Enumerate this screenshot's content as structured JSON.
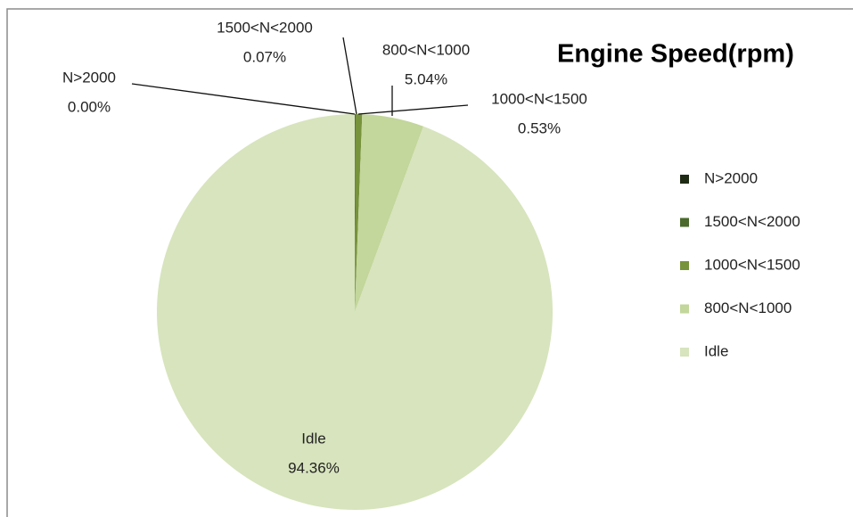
{
  "chart_data": {
    "type": "pie",
    "title": "Engine Speed(rpm)",
    "categories": [
      "N>2000",
      "1500<N<2000",
      "1000<N<1500",
      "800<N<1000",
      "Idle"
    ],
    "values": [
      0,
      0.07,
      0.53,
      5.04,
      94.36
    ],
    "value_labels": [
      "0.00%",
      "0.07%",
      "0.53%",
      "5.04%",
      "94.36%"
    ],
    "colors": [
      "#1f2a14",
      "#4b6a2b",
      "#77933c",
      "#c3d69b",
      "#d7e4bd"
    ],
    "legend": "right"
  }
}
